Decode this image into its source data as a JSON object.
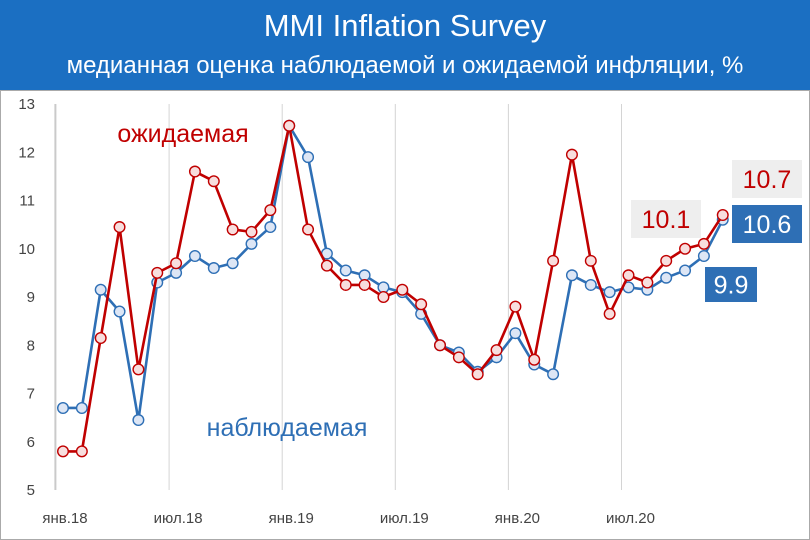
{
  "header": {
    "title": "MMI Inflation Survey",
    "subtitle": "медианная оценка наблюдаемой и ожидаемой инфляции, %"
  },
  "chart_data": {
    "type": "line",
    "title": "MMI Inflation Survey",
    "subtitle": "медианная оценка наблюдаемой и ожидаемой инфляции, %",
    "ylim": [
      5,
      13
    ],
    "yticks": [
      5,
      6,
      7,
      8,
      9,
      10,
      11,
      12,
      13
    ],
    "x_tick_labels": [
      "янв.18",
      "июл.18",
      "янв.19",
      "июл.19",
      "янв.20",
      "июл.20"
    ],
    "x_tick_index": [
      0,
      6,
      12,
      18,
      24,
      30
    ],
    "grid": "vertical",
    "series": [
      {
        "name": "наблюдаемая",
        "color": "#2e6fb5",
        "marker_fill": "#dde6f5",
        "values": [
          6.7,
          6.7,
          9.15,
          8.7,
          6.45,
          9.3,
          9.5,
          9.85,
          9.6,
          9.7,
          10.1,
          10.45,
          12.55,
          11.9,
          9.9,
          9.55,
          9.45,
          9.2,
          9.1,
          8.65,
          8.0,
          7.85,
          7.45,
          7.75,
          8.25,
          7.6,
          7.4,
          9.45,
          9.25,
          9.1,
          9.2,
          9.15,
          9.4,
          9.55,
          9.85,
          10.6
        ]
      },
      {
        "name": "ожидаемая",
        "color": "#c00000",
        "marker_fill": "#f7dede",
        "values": [
          5.8,
          5.8,
          8.15,
          10.45,
          7.5,
          9.5,
          9.7,
          11.6,
          11.4,
          10.4,
          10.35,
          10.8,
          12.55,
          10.4,
          9.65,
          9.25,
          9.25,
          9.0,
          9.15,
          8.85,
          8.0,
          7.75,
          7.4,
          7.9,
          8.8,
          7.7,
          9.75,
          11.95,
          9.75,
          8.65,
          9.45,
          9.3,
          9.75,
          10.0,
          10.1,
          10.7
        ]
      }
    ],
    "callouts": [
      {
        "text": "10.7",
        "series": "ожидаемая"
      },
      {
        "text": "10.1",
        "series": "ожидаемая"
      },
      {
        "text": "10.6",
        "series": "наблюдаемая"
      },
      {
        "text": "9.9",
        "series": "наблюдаемая"
      }
    ]
  }
}
